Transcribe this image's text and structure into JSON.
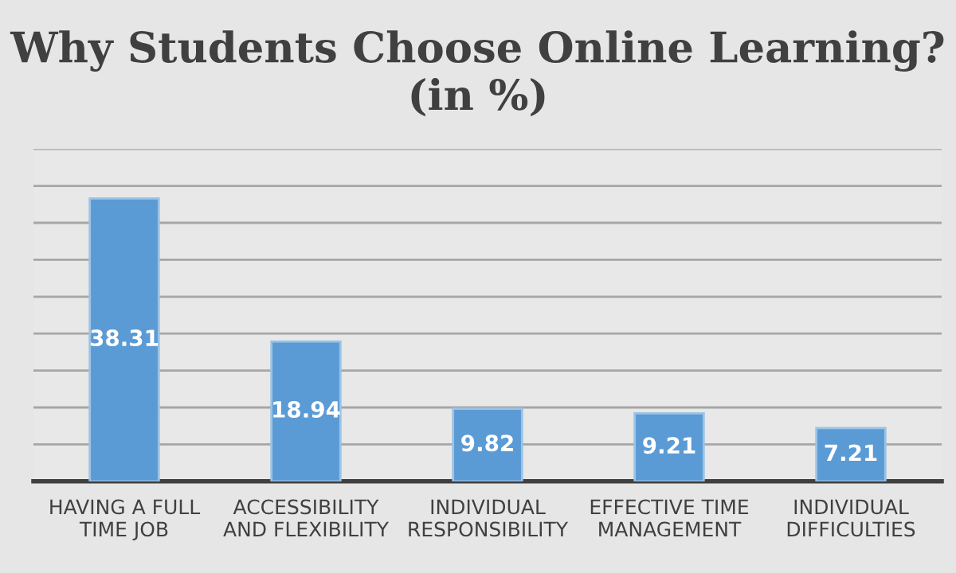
{
  "chart_data": {
    "type": "bar",
    "title": "Why Students Choose Online Learning? (in %)",
    "categories": [
      "HAVING A FULL\nTIME JOB",
      "ACCESSIBILITY\nAND FLEXIBILITY",
      "INDIVIDUAL\nRESPONSIBILITY",
      "EFFECTIVE TIME\nMANAGEMENT",
      "INDIVIDUAL\nDIFFICULTIES"
    ],
    "values": [
      38.31,
      18.94,
      9.82,
      9.21,
      7.21
    ],
    "color": "#5b9bd5",
    "ylim": [
      0,
      45
    ],
    "yticks": [
      {
        "value": 0,
        "label": null
      },
      {
        "value": 5,
        "label": null
      },
      {
        "value": 10,
        "label": null
      },
      {
        "value": 15,
        "label": null
      },
      {
        "value": 20,
        "label": null
      },
      {
        "value": 25,
        "label": null
      },
      {
        "value": 30,
        "label": null
      },
      {
        "value": 35,
        "label": null
      },
      {
        "value": 40,
        "label": null
      },
      {
        "value": 45,
        "label": null
      }
    ],
    "tick_labels": "x",
    "grid": "y",
    "data_labels": true,
    "legend": false
  }
}
